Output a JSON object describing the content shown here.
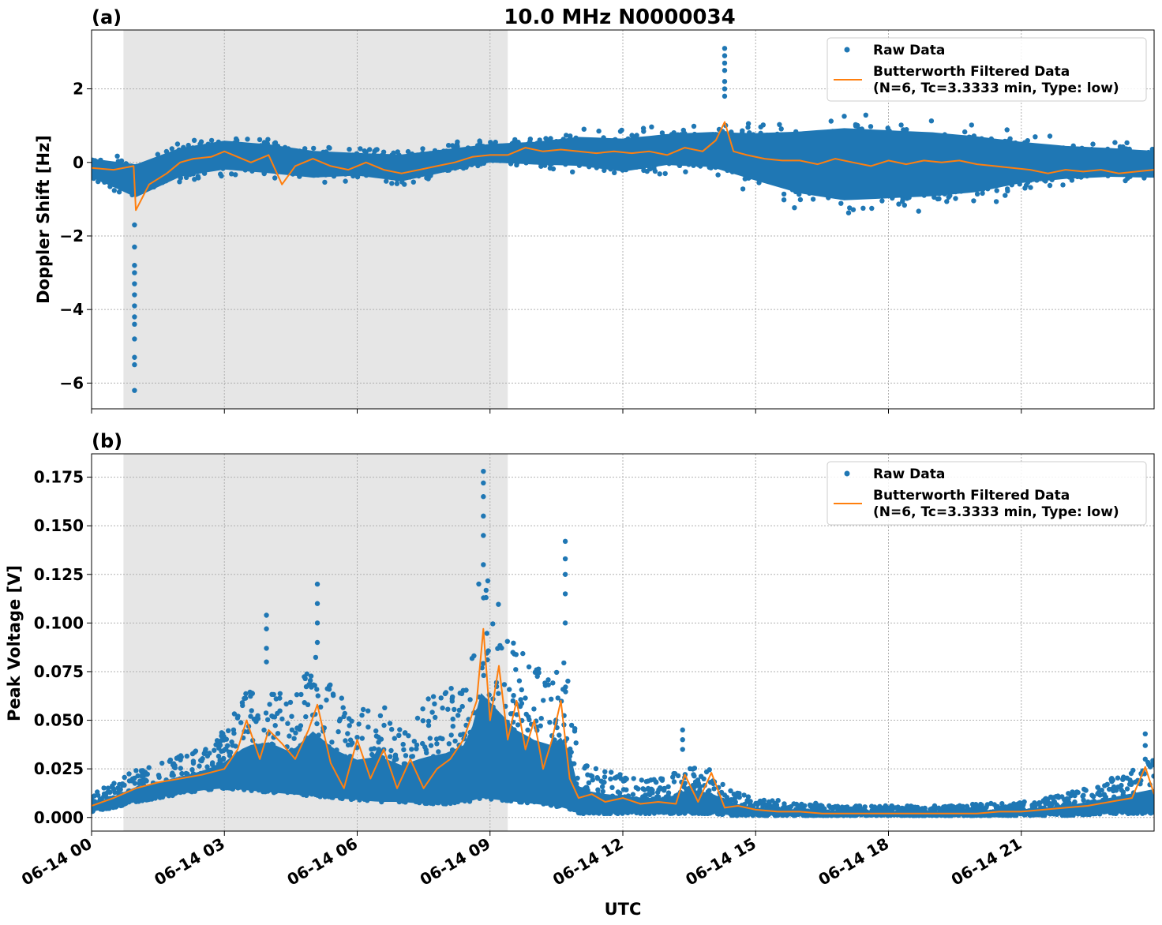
{
  "figure": {
    "title": "10.0 MHz N0000034",
    "xlabel": "UTC",
    "colors": {
      "raw": "#1f77b4",
      "filtered": "#ff7f0e",
      "shade": "#e6e6e6",
      "grid": "#b0b0b0"
    }
  },
  "chart_data": [
    {
      "type": "scatter",
      "panel_label": "(a)",
      "ylabel": "Doppler Shift [Hz]",
      "xlim_hours": [
        0,
        24
      ],
      "ylim": [
        -6.7,
        3.6
      ],
      "x_ticks": [
        {
          "hour": 0,
          "label": "06-14 00"
        },
        {
          "hour": 3,
          "label": "06-14 03"
        },
        {
          "hour": 6,
          "label": "06-14 06"
        },
        {
          "hour": 9,
          "label": "06-14 09"
        },
        {
          "hour": 12,
          "label": "06-14 12"
        },
        {
          "hour": 15,
          "label": "06-14 15"
        },
        {
          "hour": 18,
          "label": "06-14 18"
        },
        {
          "hour": 21,
          "label": "06-14 21"
        }
      ],
      "y_ticks": [
        {
          "value": 2,
          "label": "2"
        },
        {
          "value": 0,
          "label": "0"
        },
        {
          "value": -2,
          "label": "−2"
        },
        {
          "value": -4,
          "label": "−4"
        },
        {
          "value": -6,
          "label": "−6"
        }
      ],
      "grid": true,
      "shaded_span_hours": [
        0.72,
        9.4
      ],
      "legend": {
        "placement": "top-right",
        "entries": [
          {
            "label": "Raw Data",
            "style": "marker"
          },
          {
            "label": "Butterworth Filtered Data",
            "label2": "(N=6, Tc=3.3333 min, Type: low)",
            "style": "line"
          }
        ]
      },
      "series": [
        {
          "name": "Raw Data",
          "envelope_hours": [
            0,
            1,
            2,
            3,
            4,
            5,
            6,
            7,
            8,
            9,
            10,
            11,
            12,
            13,
            14,
            15,
            16,
            17,
            18,
            19,
            20,
            21,
            22,
            23,
            24
          ],
          "envelope_low": [
            -0.6,
            -1.3,
            -0.7,
            -0.5,
            -0.6,
            -0.7,
            -0.6,
            -0.8,
            -0.5,
            -0.2,
            -0.3,
            -0.4,
            -0.6,
            -0.4,
            -0.5,
            -1.0,
            -1.5,
            -1.8,
            -1.7,
            -1.6,
            -1.4,
            -1.0,
            -0.8,
            -0.7,
            -0.7
          ],
          "envelope_high": [
            0.3,
            0.3,
            0.7,
            0.9,
            0.8,
            0.6,
            0.5,
            0.5,
            0.6,
            0.7,
            0.8,
            1.0,
            1.0,
            1.1,
            1.2,
            1.3,
            1.5,
            1.7,
            1.6,
            1.5,
            1.3,
            1.0,
            0.8,
            0.7,
            0.6
          ],
          "outliers": [
            {
              "hour": 0.97,
              "values": [
                -1.7,
                -2.3,
                -2.8,
                -3.0,
                -3.3,
                -3.6,
                -3.9,
                -4.2,
                -4.4,
                -4.8,
                -5.3,
                -5.5,
                -6.2
              ]
            },
            {
              "hour": 14.3,
              "values": [
                1.8,
                2.0,
                2.2,
                2.5,
                2.7,
                2.9,
                3.1
              ]
            }
          ]
        },
        {
          "name": "Butterworth Filtered Data",
          "x_hours": [
            0,
            0.5,
            0.95,
            1.0,
            1.3,
            1.7,
            2.0,
            2.3,
            2.7,
            3.0,
            3.3,
            3.6,
            4.0,
            4.3,
            4.6,
            5.0,
            5.4,
            5.8,
            6.2,
            6.6,
            7.0,
            7.4,
            7.8,
            8.2,
            8.6,
            9.0,
            9.4,
            9.8,
            10.2,
            10.6,
            11.0,
            11.4,
            11.8,
            12.2,
            12.6,
            13.0,
            13.4,
            13.8,
            14.1,
            14.3,
            14.5,
            14.8,
            15.2,
            15.6,
            16.0,
            16.4,
            16.8,
            17.2,
            17.6,
            18.0,
            18.4,
            18.8,
            19.2,
            19.6,
            20.0,
            20.4,
            20.8,
            21.2,
            21.6,
            22.0,
            22.4,
            22.8,
            23.2,
            23.6,
            24.0
          ],
          "y": [
            -0.15,
            -0.2,
            -0.1,
            -1.3,
            -0.6,
            -0.3,
            0.0,
            0.1,
            0.15,
            0.3,
            0.15,
            0.0,
            0.2,
            -0.6,
            -0.1,
            0.1,
            -0.1,
            -0.2,
            0.0,
            -0.2,
            -0.3,
            -0.2,
            -0.1,
            0.0,
            0.15,
            0.2,
            0.2,
            0.4,
            0.3,
            0.35,
            0.3,
            0.25,
            0.3,
            0.25,
            0.3,
            0.2,
            0.4,
            0.3,
            0.6,
            1.1,
            0.3,
            0.2,
            0.1,
            0.05,
            0.05,
            -0.05,
            0.1,
            0.0,
            -0.1,
            0.05,
            -0.05,
            0.05,
            0.0,
            0.05,
            -0.05,
            -0.1,
            -0.15,
            -0.2,
            -0.3,
            -0.2,
            -0.25,
            -0.2,
            -0.3,
            -0.25,
            -0.2
          ]
        }
      ]
    },
    {
      "type": "scatter",
      "panel_label": "(b)",
      "ylabel": "Peak Voltage [V]",
      "xlim_hours": [
        0,
        24
      ],
      "ylim": [
        -0.007,
        0.187
      ],
      "x_ticks": [
        {
          "hour": 0,
          "label": "06-14 00"
        },
        {
          "hour": 3,
          "label": "06-14 03"
        },
        {
          "hour": 6,
          "label": "06-14 06"
        },
        {
          "hour": 9,
          "label": "06-14 09"
        },
        {
          "hour": 12,
          "label": "06-14 12"
        },
        {
          "hour": 15,
          "label": "06-14 15"
        },
        {
          "hour": 18,
          "label": "06-14 18"
        },
        {
          "hour": 21,
          "label": "06-14 21"
        }
      ],
      "y_ticks": [
        {
          "value": 0.0,
          "label": "0.000"
        },
        {
          "value": 0.025,
          "label": "0.025"
        },
        {
          "value": 0.05,
          "label": "0.050"
        },
        {
          "value": 0.075,
          "label": "0.075"
        },
        {
          "value": 0.1,
          "label": "0.100"
        },
        {
          "value": 0.125,
          "label": "0.125"
        },
        {
          "value": 0.15,
          "label": "0.150"
        },
        {
          "value": 0.175,
          "label": "0.175"
        }
      ],
      "grid": true,
      "shaded_span_hours": [
        0.72,
        9.4
      ],
      "legend": {
        "placement": "top-right",
        "entries": [
          {
            "label": "Raw Data",
            "style": "marker"
          },
          {
            "label": "Butterworth Filtered Data",
            "label2": "(N=6, Tc=3.3333 min, Type: low)",
            "style": "line"
          }
        ]
      },
      "series": [
        {
          "name": "Raw Data",
          "envelope_hours": [
            0,
            0.5,
            1,
            1.5,
            2,
            2.5,
            3,
            3.5,
            4,
            4.5,
            5,
            5.5,
            6,
            6.5,
            7,
            7.5,
            8,
            8.5,
            8.8,
            9.2,
            9.6,
            10,
            10.4,
            10.7,
            11,
            11.5,
            12,
            12.5,
            13,
            13.5,
            14,
            14.5,
            15,
            16,
            17,
            18,
            19,
            20,
            21,
            22,
            23,
            24
          ],
          "envelope_low": [
            0.003,
            0.005,
            0.008,
            0.01,
            0.012,
            0.014,
            0.015,
            0.014,
            0.013,
            0.012,
            0.011,
            0.01,
            0.009,
            0.008,
            0.008,
            0.007,
            0.007,
            0.008,
            0.01,
            0.009,
            0.008,
            0.007,
            0.006,
            0.005,
            0.002,
            0.002,
            0.002,
            0.002,
            0.002,
            0.002,
            0.002,
            0.001,
            0.001,
            0.001,
            0.001,
            0.001,
            0.001,
            0.001,
            0.001,
            0.001,
            0.002,
            0.002
          ],
          "envelope_high": [
            0.012,
            0.018,
            0.025,
            0.028,
            0.032,
            0.036,
            0.045,
            0.065,
            0.07,
            0.06,
            0.085,
            0.065,
            0.055,
            0.06,
            0.05,
            0.06,
            0.065,
            0.075,
            0.13,
            0.11,
            0.09,
            0.08,
            0.075,
            0.09,
            0.03,
            0.025,
            0.022,
            0.02,
            0.02,
            0.03,
            0.025,
            0.015,
            0.01,
            0.008,
            0.006,
            0.006,
            0.006,
            0.007,
            0.008,
            0.012,
            0.02,
            0.03
          ],
          "outliers": [
            {
              "hour": 3.95,
              "values": [
                0.08,
                0.087,
                0.097,
                0.104
              ]
            },
            {
              "hour": 5.1,
              "values": [
                0.09,
                0.1,
                0.11,
                0.12
              ]
            },
            {
              "hour": 8.85,
              "values": [
                0.13,
                0.145,
                0.155,
                0.165,
                0.172,
                0.178
              ]
            },
            {
              "hour": 10.7,
              "values": [
                0.1,
                0.115,
                0.125,
                0.133,
                0.142
              ]
            },
            {
              "hour": 13.35,
              "values": [
                0.035,
                0.04,
                0.045
              ]
            },
            {
              "hour": 23.8,
              "values": [
                0.03,
                0.037,
                0.043
              ]
            }
          ]
        },
        {
          "name": "Butterworth Filtered Data",
          "x_hours": [
            0,
            0.5,
            1.0,
            1.5,
            2.0,
            2.5,
            3.0,
            3.3,
            3.5,
            3.8,
            4.0,
            4.3,
            4.6,
            4.9,
            5.1,
            5.4,
            5.7,
            6.0,
            6.3,
            6.6,
            6.9,
            7.2,
            7.5,
            7.8,
            8.1,
            8.4,
            8.7,
            8.85,
            9.0,
            9.2,
            9.4,
            9.6,
            9.8,
            10.0,
            10.2,
            10.4,
            10.6,
            10.8,
            11.0,
            11.3,
            11.6,
            12.0,
            12.4,
            12.8,
            13.2,
            13.4,
            13.7,
            14.0,
            14.3,
            14.6,
            15.0,
            15.5,
            16.0,
            16.5,
            17.0,
            17.5,
            18.0,
            18.5,
            19.0,
            19.5,
            20.0,
            20.5,
            21.0,
            21.5,
            22.0,
            22.5,
            23.0,
            23.5,
            23.8,
            24.0
          ],
          "y": [
            0.006,
            0.01,
            0.015,
            0.018,
            0.02,
            0.022,
            0.025,
            0.035,
            0.05,
            0.03,
            0.045,
            0.038,
            0.03,
            0.045,
            0.058,
            0.028,
            0.015,
            0.04,
            0.02,
            0.035,
            0.015,
            0.03,
            0.015,
            0.025,
            0.03,
            0.04,
            0.06,
            0.097,
            0.05,
            0.078,
            0.04,
            0.06,
            0.035,
            0.05,
            0.025,
            0.04,
            0.06,
            0.02,
            0.01,
            0.012,
            0.008,
            0.01,
            0.007,
            0.008,
            0.007,
            0.022,
            0.008,
            0.023,
            0.005,
            0.006,
            0.004,
            0.003,
            0.003,
            0.002,
            0.002,
            0.002,
            0.002,
            0.002,
            0.002,
            0.002,
            0.002,
            0.003,
            0.003,
            0.004,
            0.005,
            0.006,
            0.008,
            0.01,
            0.026,
            0.012
          ]
        }
      ]
    }
  ]
}
